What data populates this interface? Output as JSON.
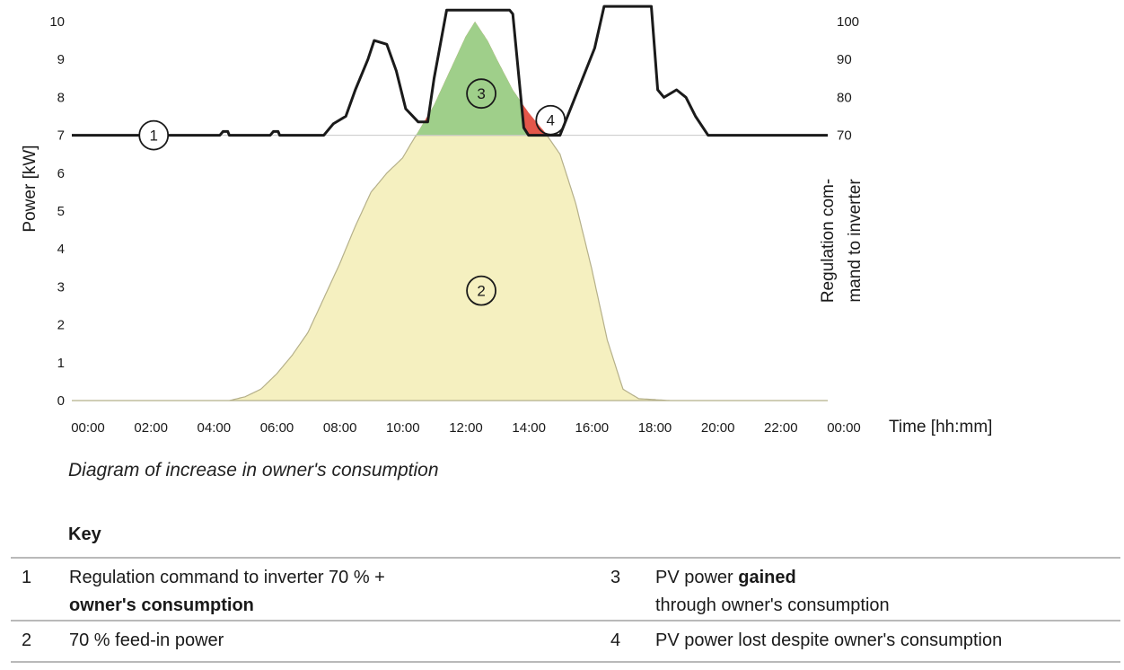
{
  "chart_data": {
    "type": "area",
    "title": "",
    "caption": "Diagram of increase in owner's consumption",
    "x_ticks": [
      "00:00",
      "02:00",
      "04:00",
      "06:00",
      "08:00",
      "10:00",
      "12:00",
      "14:00",
      "16:00",
      "18:00",
      "20:00",
      "22:00",
      "00:00"
    ],
    "xlabel": "Time [hh:mm]",
    "ylabel_left": "Power [kW]",
    "ylabel_right_line1": "Regulation com-",
    "ylabel_right_line2": "mand to inverter",
    "y_left_ticks": [
      "0",
      "1",
      "2",
      "3",
      "4",
      "5",
      "6",
      "7",
      "8",
      "9",
      "10"
    ],
    "y_right_ticks": [
      "70",
      "80",
      "90",
      "100"
    ],
    "ylim_left": [
      0,
      10
    ],
    "ylim_right": [
      70,
      100
    ],
    "xlim_hours": [
      0,
      24
    ],
    "colors": {
      "feed_in": "#f5f0c0",
      "feed_in_stroke": "#b5b08a",
      "gained": "#9fcf8a",
      "lost": "#e4574a",
      "line": "#1a1a1a",
      "limit_line": "#c8c8c8"
    },
    "series": [
      {
        "name": "PV power (feed-in area 2, gained 3, lost 4)",
        "x": [
          0,
          5,
          5.5,
          6,
          6.5,
          7,
          7.5,
          8,
          8.5,
          9,
          9.5,
          10,
          10.5,
          11,
          11.5,
          12,
          12.5,
          12.8,
          13.2,
          13.5,
          14,
          14.5,
          15,
          15.5,
          16,
          16.5,
          17,
          17.5,
          18,
          19,
          20,
          24
        ],
        "y": [
          0,
          0,
          0.1,
          0.3,
          0.7,
          1.2,
          1.8,
          2.7,
          3.6,
          4.6,
          5.5,
          6.0,
          6.4,
          7.1,
          7.8,
          8.7,
          9.6,
          10.0,
          9.5,
          9.0,
          8.2,
          7.6,
          7.1,
          6.5,
          5.2,
          3.5,
          1.6,
          0.3,
          0.05,
          0,
          0,
          0
        ]
      },
      {
        "name": "Regulation command to inverter 70 % + owner's consumption",
        "x": [
          0,
          4.7,
          4.8,
          4.95,
          5,
          6.3,
          6.4,
          6.55,
          6.6,
          8.0,
          8.3,
          8.7,
          9.0,
          9.4,
          9.6,
          10.0,
          10.3,
          10.6,
          11.0,
          11.3,
          11.5,
          11.9,
          12.0,
          13.9,
          14.0,
          14.35,
          14.5,
          14.8,
          15.0,
          15.3,
          15.5,
          16.6,
          16.9,
          17.3,
          17.4,
          18.4,
          18.6,
          18.8,
          19.2,
          19.5,
          19.8,
          20.2,
          20.5,
          24
        ],
        "y": [
          7,
          7,
          7.1,
          7.1,
          7,
          7,
          7.1,
          7.1,
          7,
          7,
          7.3,
          7.5,
          8.2,
          9.0,
          9.5,
          9.4,
          8.7,
          7.7,
          7.35,
          7.35,
          8.5,
          10.3,
          10.3,
          10.3,
          10.2,
          7.2,
          7.0,
          7.0,
          7.0,
          7.0,
          7.0,
          9.3,
          10.4,
          10.4,
          10.4,
          10.4,
          8.2,
          8.0,
          8.2,
          8.0,
          7.5,
          7.0,
          7.0,
          7.0
        ]
      }
    ],
    "markers": [
      {
        "label": "1",
        "x": 2.6,
        "y": 7.0
      },
      {
        "label": "2",
        "x": 13.0,
        "y": 2.9
      },
      {
        "label": "3",
        "x": 13.0,
        "y": 8.1
      },
      {
        "label": "4",
        "x": 15.2,
        "y": 7.4
      }
    ]
  },
  "key": {
    "title": "Key",
    "rows": [
      {
        "left_num": "1",
        "left_text": "Regulation command to inverter 70 % +",
        "left_bold": "owner's consumption",
        "right_num": "3",
        "right_text_a": "PV power ",
        "right_bold": "gained",
        "right_text_b": "through owner's consumption"
      },
      {
        "left_num": "2",
        "left_text": "70 % feed-in power",
        "right_num": "4",
        "right_text": "PV power lost despite owner's consumption"
      }
    ]
  }
}
